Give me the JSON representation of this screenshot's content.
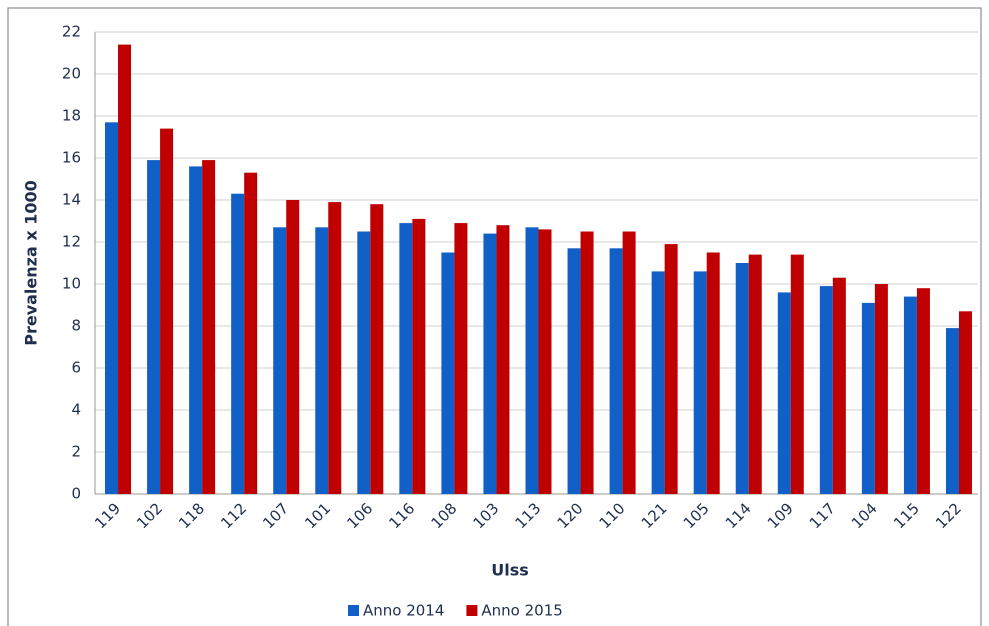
{
  "chart_data": {
    "type": "bar",
    "y_label": "Prevalenza x 1000",
    "x_label": "Ulss",
    "categories": [
      "119",
      "102",
      "118",
      "112",
      "107",
      "101",
      "106",
      "116",
      "108",
      "103",
      "113",
      "120",
      "110",
      "121",
      "105",
      "114",
      "109",
      "117",
      "104",
      "115",
      "122"
    ],
    "series": [
      {
        "name": "Anno 2014",
        "color": "#1060c8",
        "values": [
          17.7,
          15.9,
          15.6,
          14.3,
          12.7,
          12.7,
          12.5,
          12.9,
          11.5,
          12.4,
          12.7,
          11.7,
          11.7,
          10.6,
          10.6,
          11.0,
          9.6,
          9.9,
          9.1,
          9.4,
          7.9
        ]
      },
      {
        "name": "Anno 2015",
        "color": "#c00000",
        "values": [
          21.4,
          17.4,
          15.9,
          15.3,
          14.0,
          13.9,
          13.8,
          13.1,
          12.9,
          12.8,
          12.6,
          12.5,
          12.5,
          11.9,
          11.5,
          11.4,
          11.4,
          10.3,
          10.0,
          9.8,
          8.7
        ]
      }
    ],
    "ylim": [
      0,
      22
    ],
    "yticks": [
      0,
      2,
      4,
      6,
      8,
      10,
      12,
      14,
      16,
      18,
      20,
      22
    ],
    "grid": true,
    "legend": "bottom"
  }
}
